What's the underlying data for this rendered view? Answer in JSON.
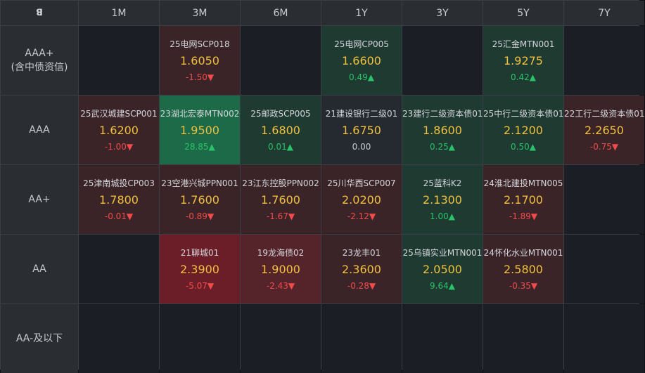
{
  "corner_logo": "ꓭ",
  "columns": [
    "1M",
    "3M",
    "6M",
    "1Y",
    "3Y",
    "5Y",
    "7Y"
  ],
  "rows": [
    {
      "label_line1": "AAA+",
      "label_line2": "(含中债资信)",
      "cells": [
        null,
        {
          "name": "25电网SCP018",
          "yield": "1.6050",
          "change": "-1.50▼",
          "dir": "down",
          "tone": "down-weak"
        },
        null,
        {
          "name": "25电网CP005",
          "yield": "1.6600",
          "change": "0.49▲",
          "dir": "up",
          "tone": "up-weak"
        },
        null,
        {
          "name": "25汇金MTN001",
          "yield": "1.9275",
          "change": "0.42▲",
          "dir": "up",
          "tone": "up-weak"
        },
        null
      ]
    },
    {
      "label_line1": "AAA",
      "label_line2": "",
      "cells": [
        {
          "name": "25武汉城建SCP001",
          "yield": "1.6200",
          "change": "-1.00▼",
          "dir": "down",
          "tone": "down-weak"
        },
        {
          "name": "23湖北宏泰MTN002",
          "yield": "1.9500",
          "change": "28.85▲",
          "dir": "up",
          "tone": "up-strong"
        },
        {
          "name": "25邮政SCP005",
          "yield": "1.6800",
          "change": "0.01▲",
          "dir": "up",
          "tone": "up-weak"
        },
        {
          "name": "21建设银行二级01",
          "yield": "1.6750",
          "change": "0.00",
          "dir": "flat",
          "tone": "neutral"
        },
        {
          "name": "23建行二级资本债01",
          "yield": "1.8600",
          "change": "0.25▲",
          "dir": "up",
          "tone": "up-weak"
        },
        {
          "name": "25中行二级资本债01",
          "yield": "2.1200",
          "change": "0.50▲",
          "dir": "up",
          "tone": "up-weak"
        },
        {
          "name": "22工行二级资本债01",
          "yield": "2.2650",
          "change": "-0.75▼",
          "dir": "down",
          "tone": "down-weak"
        }
      ]
    },
    {
      "label_line1": "AA+",
      "label_line2": "",
      "cells": [
        {
          "name": "25津南城投CP003",
          "yield": "1.7800",
          "change": "-0.01▼",
          "dir": "down",
          "tone": "down-weak"
        },
        {
          "name": "23空港兴城PPN001",
          "yield": "1.7600",
          "change": "-0.89▼",
          "dir": "down",
          "tone": "down-weak"
        },
        {
          "name": "23江东控股PPN002",
          "yield": "1.7600",
          "change": "-1.67▼",
          "dir": "down",
          "tone": "down-weak"
        },
        {
          "name": "25川华西SCP007",
          "yield": "2.0200",
          "change": "-2.12▼",
          "dir": "down",
          "tone": "down-weak"
        },
        {
          "name": "25蓝科K2",
          "yield": "2.1300",
          "change": "1.00▲",
          "dir": "up",
          "tone": "up-weak"
        },
        {
          "name": "24淮北建投MTN005",
          "yield": "2.1700",
          "change": "-1.89▼",
          "dir": "down",
          "tone": "down-weak"
        },
        null
      ]
    },
    {
      "label_line1": "AA",
      "label_line2": "",
      "cells": [
        null,
        {
          "name": "21聊城01",
          "yield": "2.3900",
          "change": "-5.07▼",
          "dir": "down",
          "tone": "down-strong"
        },
        {
          "name": "19龙海债02",
          "yield": "1.9000",
          "change": "-2.43▼",
          "dir": "down",
          "tone": "down-mid"
        },
        {
          "name": "23龙丰01",
          "yield": "2.3600",
          "change": "-0.28▼",
          "dir": "down",
          "tone": "down-weak"
        },
        {
          "name": "25乌镇实业MTN001",
          "yield": "2.0500",
          "change": "9.64▲",
          "dir": "up",
          "tone": "up-weak"
        },
        {
          "name": "24怀化水业MTN001",
          "yield": "2.5800",
          "change": "-0.35▼",
          "dir": "down",
          "tone": "down-weak"
        },
        null
      ]
    },
    {
      "label_line1": "AA-及以下",
      "label_line2": "",
      "cells": [
        null,
        null,
        null,
        null,
        null,
        null,
        null
      ]
    }
  ]
}
